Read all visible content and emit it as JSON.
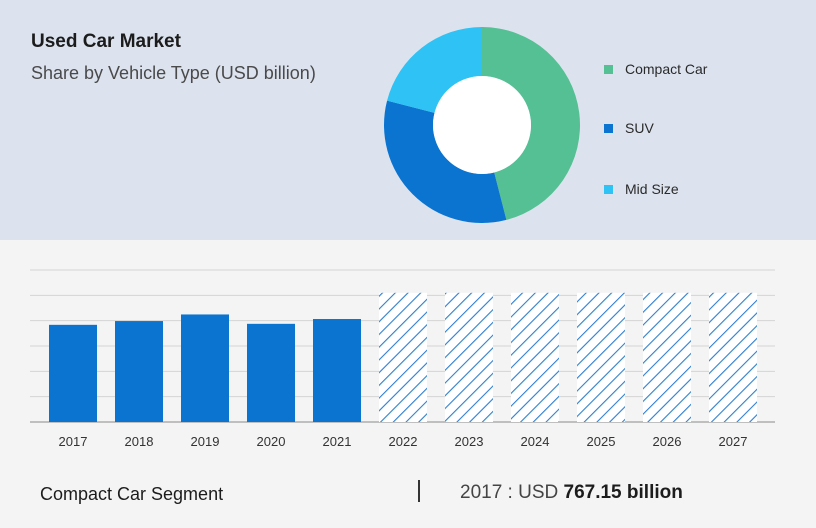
{
  "header": {
    "title": "Used Car Market",
    "subtitle": "Share by Vehicle Type (USD billion)"
  },
  "legend": [
    {
      "label": "Compact Car",
      "color": "#54c094"
    },
    {
      "label": "SUV",
      "color": "#0a74d0"
    },
    {
      "label": "Mid Size",
      "color": "#2ec2f5"
    }
  ],
  "footer": {
    "segment_label": "Compact Car Segment",
    "year_prefix": "2017 : USD",
    "value_text": "767.15 billion"
  },
  "chart_data": [
    {
      "type": "pie",
      "style": "donut",
      "categories": [
        "Compact Car",
        "SUV",
        "Mid Size"
      ],
      "values": [
        46,
        33,
        21
      ],
      "colors": [
        "#54c094",
        "#0a74d0",
        "#2ec2f5"
      ],
      "legend_position": "right"
    },
    {
      "type": "bar",
      "categories": [
        "2017",
        "2018",
        "2019",
        "2020",
        "2021",
        "2022",
        "2023",
        "2024",
        "2025",
        "2026",
        "2027"
      ],
      "values": [
        767.15,
        797,
        849,
        775,
        813,
        null,
        null,
        null,
        null,
        null,
        null
      ],
      "forecast": [
        false,
        false,
        false,
        false,
        false,
        true,
        true,
        true,
        true,
        true,
        true
      ],
      "forecast_level": 1020,
      "ylim": [
        0,
        1200
      ],
      "grid": true,
      "color": "#0a74d0",
      "hatch_color": "#2f7fcf"
    }
  ]
}
